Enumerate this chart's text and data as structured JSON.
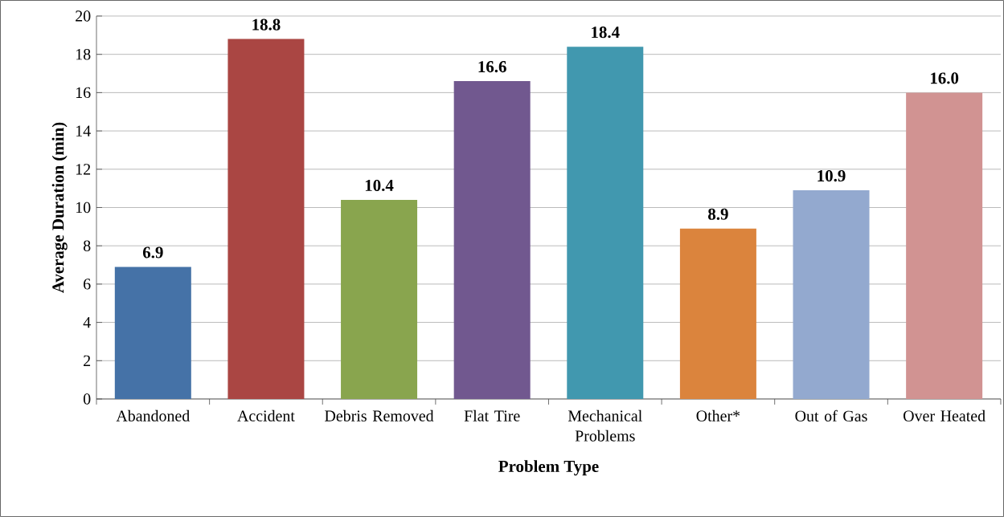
{
  "chart_data": {
    "type": "bar",
    "xlabel": "Problem Type",
    "ylabel": "Average Duration (min)",
    "categories": [
      "Abandoned",
      "Accident",
      "Debris Removed",
      "Flat Tire",
      "Mechanical Problems",
      "Other*",
      "Out of Gas",
      "Over Heated"
    ],
    "values": [
      6.9,
      18.8,
      10.4,
      16.6,
      18.4,
      8.9,
      10.9,
      16.0
    ],
    "value_labels": [
      "6.9",
      "18.8",
      "10.4",
      "16.6",
      "18.4",
      "8.9",
      "10.9",
      "16.0"
    ],
    "colors": [
      "#4572a7",
      "#aa4643",
      "#89a54e",
      "#71588f",
      "#4198af",
      "#db843d",
      "#93a9cf",
      "#d19392"
    ],
    "ylim": [
      0,
      20
    ],
    "yticks": [
      0,
      2,
      4,
      6,
      8,
      10,
      12,
      14,
      16,
      18,
      20
    ],
    "grid": "y"
  }
}
